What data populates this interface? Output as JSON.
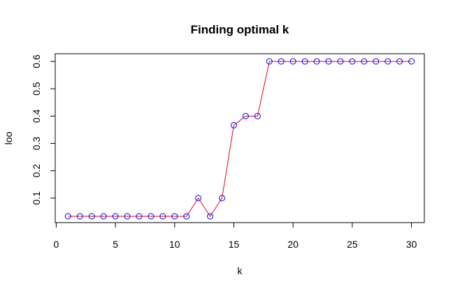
{
  "chart_data": {
    "type": "line",
    "title": "Finding optimal k",
    "xlabel": "k",
    "ylabel": "loo",
    "xlim": [
      0,
      30
    ],
    "ylim": [
      0.0333,
      0.6
    ],
    "xticks": [
      0,
      5,
      10,
      15,
      20,
      25,
      30
    ],
    "yticks": [
      0.1,
      0.2,
      0.3,
      0.4,
      0.5,
      0.6
    ],
    "grid": false,
    "series": [
      {
        "line_color": "#e8001c",
        "marker": "open-circle",
        "marker_color": "#0000ff",
        "x": [
          1,
          2,
          3,
          4,
          5,
          6,
          7,
          8,
          9,
          10,
          11,
          12,
          13,
          14,
          15,
          16,
          17,
          18,
          19,
          20,
          21,
          22,
          23,
          24,
          25,
          26,
          27,
          28,
          29,
          30
        ],
        "y": [
          0.0333,
          0.0333,
          0.0333,
          0.0333,
          0.0333,
          0.0333,
          0.0333,
          0.0333,
          0.0333,
          0.0333,
          0.0333,
          0.1,
          0.0333,
          0.1,
          0.3667,
          0.4,
          0.4,
          0.6,
          0.6,
          0.6,
          0.6,
          0.6,
          0.6,
          0.6,
          0.6,
          0.6,
          0.6,
          0.6,
          0.6,
          0.6
        ]
      }
    ]
  }
}
